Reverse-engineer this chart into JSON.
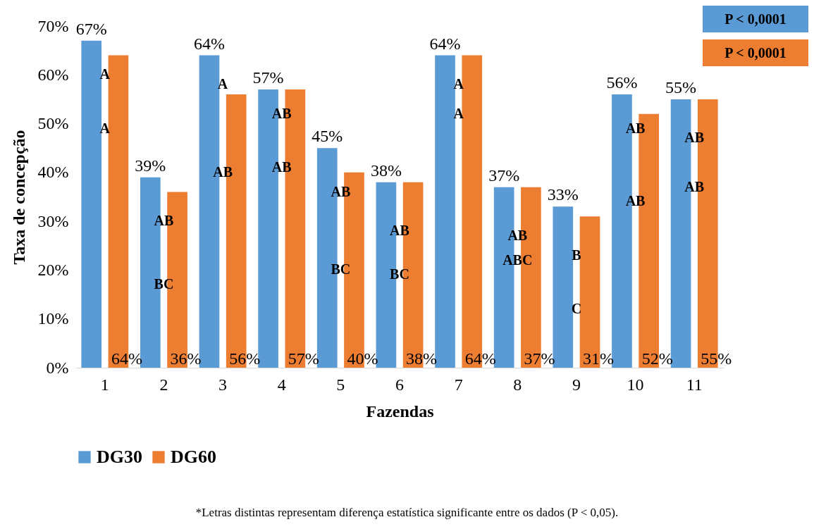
{
  "chart_data": {
    "type": "bar",
    "xlabel": "Fazendas",
    "ylabel": "Taxa de concepção",
    "categories": [
      "1",
      "2",
      "3",
      "4",
      "5",
      "6",
      "7",
      "8",
      "9",
      "10",
      "11"
    ],
    "series": [
      {
        "name": "DG30",
        "color": "#5b9bd5",
        "values": [
          67,
          39,
          64,
          57,
          45,
          38,
          64,
          37,
          33,
          56,
          55
        ],
        "value_labels": [
          "67%",
          "39%",
          "64%",
          "57%",
          "45%",
          "38%",
          "64%",
          "37%",
          "33%",
          "56%",
          "55%"
        ]
      },
      {
        "name": "DG60",
        "color": "#ed7d31",
        "values": [
          64,
          36,
          56,
          57,
          40,
          38,
          64,
          37,
          31,
          52,
          55
        ],
        "value_labels": [
          "64%",
          "36%",
          "56%",
          "57%",
          "40%",
          "38%",
          "64%",
          "37%",
          "31%",
          "52%",
          "55%"
        ]
      }
    ],
    "ylim": [
      0,
      70
    ],
    "yticks": [
      {
        "value": 0,
        "label": "0%"
      },
      {
        "value": 10,
        "label": "10%"
      },
      {
        "value": 20,
        "label": "20%"
      },
      {
        "value": 30,
        "label": "30%"
      },
      {
        "value": 40,
        "label": "40%"
      },
      {
        "value": 50,
        "label": "50%"
      },
      {
        "value": 60,
        "label": "60%"
      },
      {
        "value": 70,
        "label": "70%"
      }
    ],
    "grid": false,
    "legend": "bottom",
    "annotations": [
      "P < 0,0001",
      "P < 0,0001",
      "*Letras distintas representam diferença estatística significante entre os dados (P < 0,05).",
      {
        "text": "A",
        "x": "1",
        "y": 60
      },
      {
        "text": "AB",
        "x": "2",
        "y": 30
      },
      {
        "text": "A",
        "x": "3",
        "y": 58
      },
      {
        "text": "AB",
        "x": "4",
        "y": 52
      },
      {
        "text": "AB",
        "x": "5",
        "y": 36
      },
      {
        "text": "AB",
        "x": "6",
        "y": 28
      },
      {
        "text": "A",
        "x": "7",
        "y": 58
      },
      {
        "text": "AB",
        "x": "8",
        "y": 27
      },
      {
        "text": "B",
        "x": "9",
        "y": 23
      },
      {
        "text": "AB",
        "x": "10",
        "y": 49
      },
      {
        "text": "AB",
        "x": "11",
        "y": 47
      },
      {
        "text": "A",
        "x": "1",
        "y": 49
      },
      {
        "text": "BC",
        "x": "2",
        "y": 17
      },
      {
        "text": "AB",
        "x": "3",
        "y": 40
      },
      {
        "text": "AB",
        "x": "4",
        "y": 41
      },
      {
        "text": "BC",
        "x": "5",
        "y": 20
      },
      {
        "text": "BC",
        "x": "6",
        "y": 19
      },
      {
        "text": "A",
        "x": "7",
        "y": 52
      },
      {
        "text": "ABC",
        "x": "8",
        "y": 22
      },
      {
        "text": "C",
        "x": "9",
        "y": 12
      },
      {
        "text": "AB",
        "x": "10",
        "y": 34
      },
      {
        "text": "AB",
        "x": "11",
        "y": 37
      }
    ]
  }
}
